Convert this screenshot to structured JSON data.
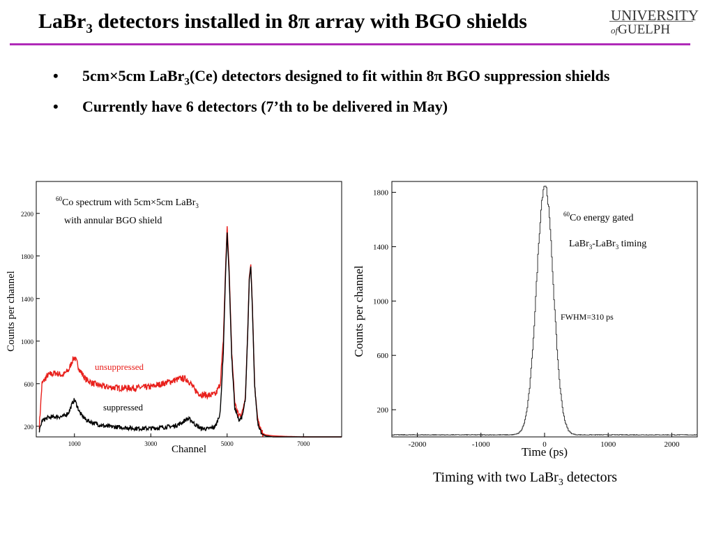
{
  "slide": {
    "title_main": "LaBr",
    "title_sub": "3",
    "title_rest": " detectors installed in 8π array with BGO shields",
    "logo_line1": "UNIVERSITY",
    "logo_of": "of",
    "logo_line2": "GUELPH",
    "bullets": [
      {
        "marker": "•",
        "pre": "5cm×5cm LaBr",
        "sub": "3",
        "post": "(Ce) detectors designed to fit within 8π BGO suppression shields"
      },
      {
        "marker": "•",
        "pre": "Currently have 6 detectors (7’th to be delivered in May)",
        "sub": "",
        "post": ""
      }
    ],
    "caption_pre": "Timing with two LaBr",
    "caption_sub": "3",
    "caption_post": " detectors"
  },
  "colors": {
    "title_rule": "#b02ab8",
    "unsuppressed": "#e8201c",
    "suppressed": "#000000",
    "timing": "#333333"
  },
  "chart_data": [
    {
      "type": "line",
      "title": "",
      "xlabel": "Channel",
      "ylabel": "Counts per channel",
      "xlim": [
        0,
        8000
      ],
      "ylim": [
        100,
        2500
      ],
      "x_ticks": [
        "1000",
        "3000",
        "5000",
        "7000"
      ],
      "y_ticks": [
        "200",
        "600",
        "1000",
        "1400",
        "1800",
        "2200"
      ],
      "annotations": {
        "line1_sup": "60",
        "line1_text": "Co spectrum with 5cm×5cm LaBr",
        "line1_sub": "3",
        "line2": "with annular BGO shield",
        "unsuppressed_label": "unsuppressed",
        "suppressed_label": "suppressed"
      },
      "series": [
        {
          "name": "unsuppressed",
          "x": [
            80,
            150,
            300,
            500,
            700,
            850,
            950,
            1000,
            1050,
            1150,
            1300,
            1500,
            1800,
            2200,
            2600,
            3000,
            3300,
            3600,
            3800,
            3950,
            4050,
            4150,
            4300,
            4500,
            4700,
            4820,
            4900,
            4960,
            5000,
            5050,
            5120,
            5200,
            5300,
            5400,
            5480,
            5540,
            5580,
            5620,
            5660,
            5720,
            5800,
            5900,
            6000,
            6200,
            6500,
            7000,
            7500,
            8000
          ],
          "y": [
            200,
            600,
            680,
            700,
            680,
            730,
            820,
            850,
            810,
            720,
            640,
            600,
            570,
            560,
            560,
            570,
            600,
            630,
            650,
            640,
            600,
            540,
            500,
            490,
            500,
            600,
            1000,
            1700,
            2080,
            1700,
            900,
            420,
            300,
            330,
            500,
            1100,
            1600,
            1720,
            1350,
            600,
            260,
            140,
            120,
            110,
            105,
            100,
            100,
            100
          ]
        },
        {
          "name": "suppressed",
          "x": [
            80,
            150,
            300,
            500,
            700,
            850,
            950,
            1000,
            1050,
            1150,
            1300,
            1500,
            1800,
            2200,
            2600,
            3000,
            3300,
            3600,
            3800,
            3950,
            4050,
            4150,
            4300,
            4500,
            4700,
            4820,
            4900,
            4960,
            5000,
            5050,
            5120,
            5200,
            5300,
            5400,
            5480,
            5540,
            5580,
            5620,
            5660,
            5720,
            5800,
            5900,
            6000,
            6200,
            6500,
            7000,
            7500,
            8000
          ],
          "y": [
            150,
            250,
            280,
            290,
            290,
            330,
            420,
            450,
            410,
            320,
            260,
            230,
            200,
            190,
            180,
            180,
            190,
            200,
            230,
            270,
            260,
            220,
            180,
            175,
            200,
            330,
            900,
            1650,
            2020,
            1650,
            850,
            370,
            260,
            290,
            460,
            1080,
            1580,
            1700,
            1330,
            580,
            240,
            130,
            110,
            100,
            100,
            100,
            100,
            100
          ]
        }
      ]
    },
    {
      "type": "line",
      "title": "",
      "xlabel": "Time (ps)",
      "ylabel": "Counts per channel",
      "xlim": [
        -2400,
        2400
      ],
      "ylim": [
        0,
        1880
      ],
      "x_ticks": [
        "-2000",
        "-1000",
        "0",
        "1000",
        "2000"
      ],
      "y_ticks": [
        "200",
        "600",
        "1000",
        "1400",
        "1800"
      ],
      "annotations": {
        "line1_sup": "60",
        "line1_text": "Co energy gated",
        "line2_pre": "LaBr",
        "line2_sub1": "3",
        "line2_mid": "-LaBr",
        "line2_sub2": "3",
        "line2_post": " timing",
        "fwhm": "FWHM=310 ps"
      },
      "series": [
        {
          "name": "",
          "peak_center": 0,
          "peak_height": 1840,
          "fwhm": 310,
          "baseline": 15
        }
      ]
    }
  ]
}
